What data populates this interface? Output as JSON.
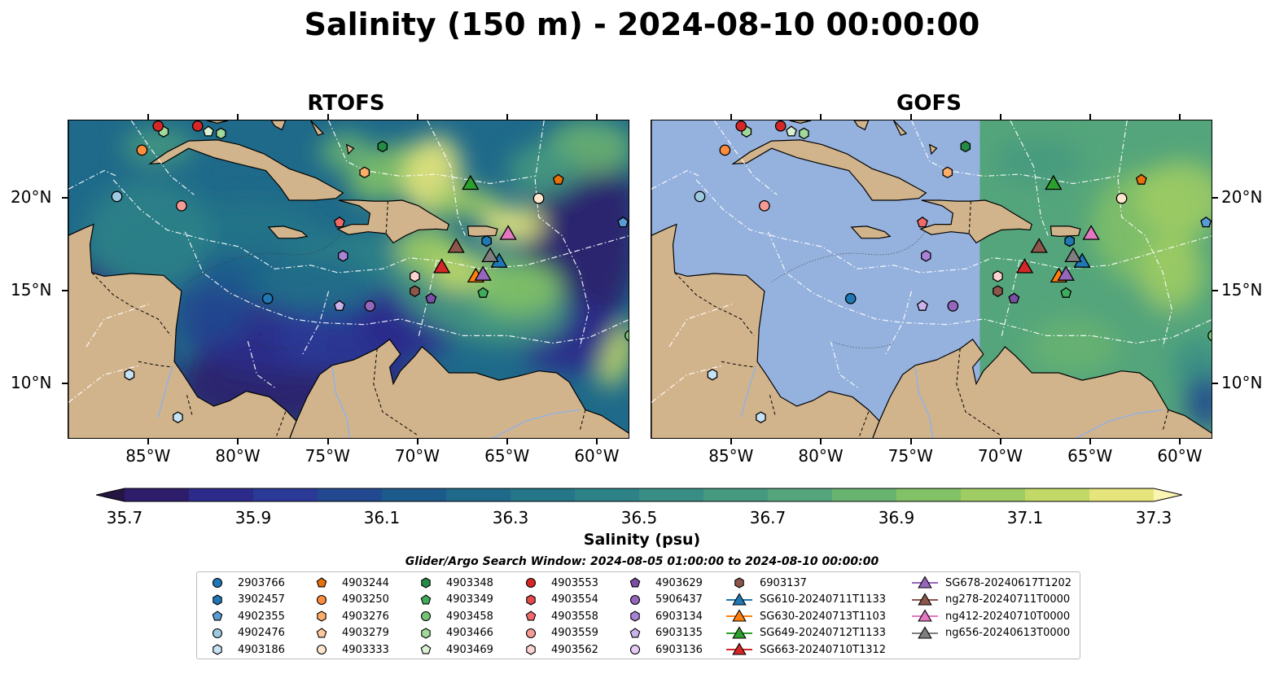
{
  "title": "Salinity (150 m) - 2024-08-10 00:00:00",
  "panels": [
    {
      "title": "RTOFS"
    },
    {
      "title": "GOFS"
    }
  ],
  "axes": {
    "lon_ticks": [
      "85°W",
      "80°W",
      "75°W",
      "70°W",
      "65°W",
      "60°W"
    ],
    "lat_ticks": [
      "20°N",
      "15°N",
      "10°N"
    ],
    "lon_range": [
      -89.5,
      -58.2
    ],
    "lat_range": [
      7.0,
      24.2
    ]
  },
  "colorbar": {
    "label": "Salinity (psu)",
    "min": 35.7,
    "max": 37.3,
    "step": 0.1,
    "tick_labels": [
      "35.7",
      "35.9",
      "36.1",
      "36.3",
      "36.5",
      "36.7",
      "36.9",
      "37.1",
      "37.3"
    ],
    "colors": [
      "#2e1d6b",
      "#2c2b8c",
      "#2a3a96",
      "#22498f",
      "#1d5a8c",
      "#1f6a8a",
      "#247688",
      "#2d8287",
      "#388e85",
      "#45997f",
      "#54a57b",
      "#69b371",
      "#82c166",
      "#a0cd63",
      "#c2d967",
      "#e5e57c",
      "#f5f099"
    ],
    "under_color": "#241543",
    "over_color": "#fbf5b4"
  },
  "search_window": "Glider/Argo Search Window: 2024-08-05 01:00:00 to 2024-08-10 00:00:00",
  "map_colors": {
    "land": "#d2b48c",
    "no_data": "#95b2de",
    "shelf": "#9fbde0"
  },
  "legend": [
    {
      "label": "2903766",
      "marker": "circle",
      "color": "#1f77b4"
    },
    {
      "label": "3902457",
      "marker": "hexagon",
      "color": "#1f77b4"
    },
    {
      "label": "4902355",
      "marker": "pentagon",
      "color": "#5a9bd5"
    },
    {
      "label": "4902476",
      "marker": "circle",
      "color": "#9ecae1"
    },
    {
      "label": "4903186",
      "marker": "hexagon",
      "color": "#c6e2f5"
    },
    {
      "label": "4903244",
      "marker": "pentagon",
      "color": "#e6700a"
    },
    {
      "label": "4903250",
      "marker": "circle",
      "color": "#fd8d3c"
    },
    {
      "label": "4903276",
      "marker": "hexagon",
      "color": "#fdae6b"
    },
    {
      "label": "4903279",
      "marker": "pentagon",
      "color": "#fdc89b"
    },
    {
      "label": "4903333",
      "marker": "circle",
      "color": "#fee6ce"
    },
    {
      "label": "4903348",
      "marker": "hexagon",
      "color": "#238b45"
    },
    {
      "label": "4903349",
      "marker": "pentagon",
      "color": "#41ab5d"
    },
    {
      "label": "4903458",
      "marker": "circle",
      "color": "#74c476"
    },
    {
      "label": "4903466",
      "marker": "hexagon",
      "color": "#a1d99b"
    },
    {
      "label": "4903469",
      "marker": "pentagon",
      "color": "#d9f0d3"
    },
    {
      "label": "4903553",
      "marker": "circle",
      "color": "#d62728"
    },
    {
      "label": "4903554",
      "marker": "hexagon",
      "color": "#e34a4a"
    },
    {
      "label": "4903558",
      "marker": "pentagon",
      "color": "#f16a6a"
    },
    {
      "label": "4903559",
      "marker": "circle",
      "color": "#f59b94"
    },
    {
      "label": "4903562",
      "marker": "hexagon",
      "color": "#fcd4cf"
    },
    {
      "label": "4903629",
      "marker": "pentagon",
      "color": "#7b4fa8"
    },
    {
      "label": "5906437",
      "marker": "circle",
      "color": "#9467bd"
    },
    {
      "label": "6903134",
      "marker": "hexagon",
      "color": "#a983d8"
    },
    {
      "label": "6903135",
      "marker": "pentagon",
      "color": "#cbb2ea"
    },
    {
      "label": "6903136",
      "marker": "circle",
      "color": "#e6ccf5"
    },
    {
      "label": "6903137",
      "marker": "hexagon",
      "color": "#8c564b"
    },
    {
      "label": "SG610-20240711T1133",
      "marker": "triangle",
      "color": "#1f77b4"
    },
    {
      "label": "SG630-20240713T1103",
      "marker": "triangle",
      "color": "#ff7f0e"
    },
    {
      "label": "SG649-20240712T1133",
      "marker": "triangle",
      "color": "#2ca02c"
    },
    {
      "label": "SG663-20240710T1312",
      "marker": "triangle",
      "color": "#d62728"
    },
    {
      "label": "SG678-20240617T1202",
      "marker": "triangle",
      "color": "#9467bd"
    },
    {
      "label": "ng278-20240711T0000",
      "marker": "triangle",
      "color": "#8c564b"
    },
    {
      "label": "ng412-20240710T0000",
      "marker": "triangle",
      "color": "#e377c2"
    },
    {
      "label": "ng656-20240613T0000",
      "marker": "triangle",
      "color": "#7f7f7f"
    }
  ],
  "observations": [
    {
      "id": "2903766",
      "lon": -78.4,
      "lat": 14.6
    },
    {
      "id": "3902457",
      "lon": -66.2,
      "lat": 17.7
    },
    {
      "id": "4902355",
      "lon": -58.6,
      "lat": 18.7
    },
    {
      "id": "4902476",
      "lon": -86.8,
      "lat": 20.1
    },
    {
      "id": "4903186",
      "lon": -86.1,
      "lat": 10.5
    },
    {
      "id": "4903186",
      "lon": -83.4,
      "lat": 8.2
    },
    {
      "id": "4903244",
      "lon": -62.2,
      "lat": 21.0
    },
    {
      "id": "4903250",
      "lon": -85.4,
      "lat": 22.6
    },
    {
      "id": "4903276",
      "lon": -73.0,
      "lat": 21.4
    },
    {
      "id": "4903333",
      "lon": -63.3,
      "lat": 20.0
    },
    {
      "id": "4903348",
      "lon": -72.0,
      "lat": 22.8
    },
    {
      "id": "4903349",
      "lon": -66.4,
      "lat": 14.9
    },
    {
      "id": "4903458",
      "lon": -58.2,
      "lat": 12.6
    },
    {
      "id": "4903466",
      "lon": -84.2,
      "lat": 23.6
    },
    {
      "id": "4903466",
      "lon": -81.0,
      "lat": 23.5
    },
    {
      "id": "4903469",
      "lon": -81.7,
      "lat": 23.6
    },
    {
      "id": "4903553",
      "lon": -82.3,
      "lat": 23.9
    },
    {
      "id": "4903553",
      "lon": -84.5,
      "lat": 23.9
    },
    {
      "id": "4903558",
      "lon": -74.4,
      "lat": 18.7
    },
    {
      "id": "4903559",
      "lon": -83.2,
      "lat": 19.6
    },
    {
      "id": "4903562",
      "lon": -70.2,
      "lat": 15.8
    },
    {
      "id": "4903629",
      "lon": -69.3,
      "lat": 14.6
    },
    {
      "id": "5906437",
      "lon": -72.7,
      "lat": 14.2
    },
    {
      "id": "6903134",
      "lon": -74.2,
      "lat": 16.9
    },
    {
      "id": "6903135",
      "lon": -74.4,
      "lat": 14.2
    },
    {
      "id": "6903137",
      "lon": -70.2,
      "lat": 15.0
    },
    {
      "id": "SG610-20240711T1133",
      "lon": -65.5,
      "lat": 16.6
    },
    {
      "id": "SG630-20240713T1103",
      "lon": -66.8,
      "lat": 15.8
    },
    {
      "id": "SG649-20240712T1133",
      "lon": -67.1,
      "lat": 20.8
    },
    {
      "id": "SG663-20240710T1312",
      "lon": -68.7,
      "lat": 16.3
    },
    {
      "id": "SG678-20240617T1202",
      "lon": -66.4,
      "lat": 15.9
    },
    {
      "id": "ng278-20240711T0000",
      "lon": -67.9,
      "lat": 17.4
    },
    {
      "id": "ng412-20240710T0000",
      "lon": -65.0,
      "lat": 18.1
    },
    {
      "id": "ng656-20240613T0000",
      "lon": -66.0,
      "lat": 16.9
    }
  ]
}
